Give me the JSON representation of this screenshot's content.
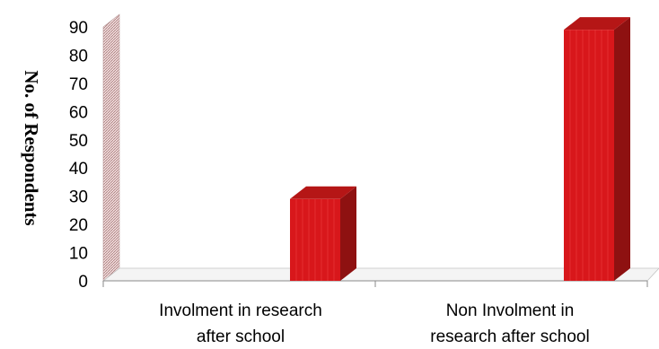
{
  "chart_data": {
    "type": "bar",
    "style": "3d-column",
    "categories": [
      [
        "Involment in research",
        "after school"
      ],
      [
        "Non Involment in",
        "research after school"
      ]
    ],
    "values": [
      29,
      89
    ],
    "ylabel": "No. of Respondents",
    "ylim": [
      0,
      90
    ],
    "yticks": [
      "0",
      "10",
      "20",
      "30",
      "40",
      "50",
      "60",
      "70",
      "80",
      "90"
    ],
    "bar_color": "#d8171b",
    "bar_side_color": "#8e1111",
    "bar_top_color": "#b51616",
    "grid": false,
    "legend": "none"
  }
}
